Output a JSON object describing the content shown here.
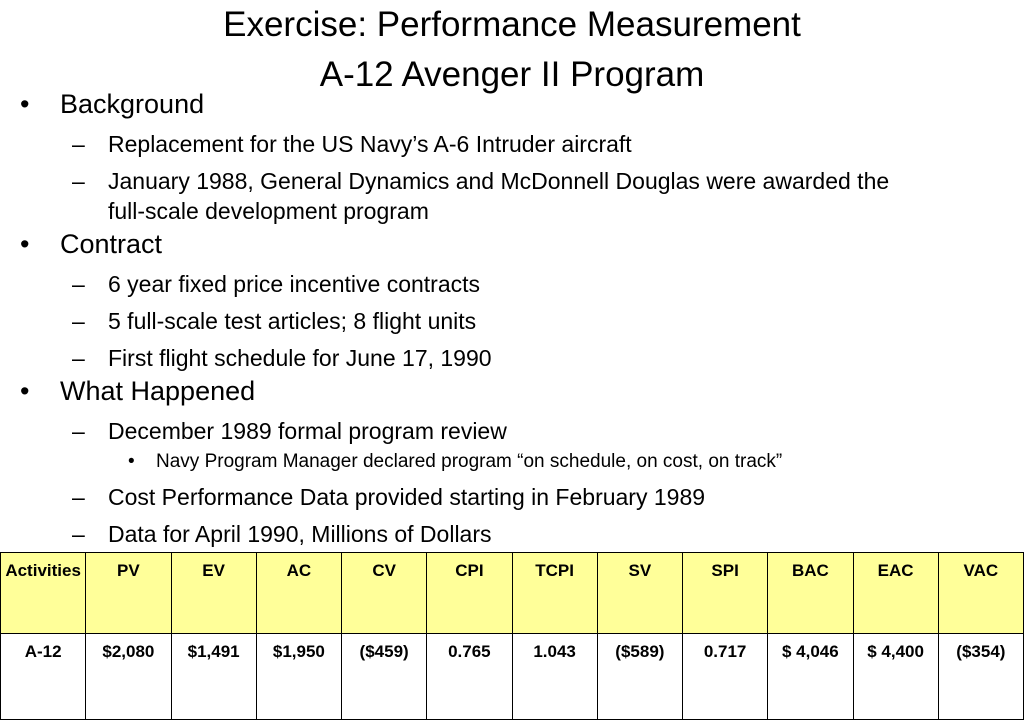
{
  "title": [
    "Exercise: Performance Measurement",
    "A-12 Avenger II Program"
  ],
  "bullets": [
    {
      "text": "Background",
      "items": [
        {
          "text": "Replacement for the US Navy’s A-6 Intruder aircraft"
        },
        {
          "text": "January 1988, General Dynamics and McDonnell Douglas were awarded the full-scale development program"
        }
      ]
    },
    {
      "text": "Contract",
      "items": [
        {
          "text": "6 year fixed price incentive contracts"
        },
        {
          "text": "5 full-scale test articles; 8 flight units"
        },
        {
          "text": "First flight schedule for June 17, 1990"
        }
      ]
    },
    {
      "text": "What Happened",
      "items": [
        {
          "text": "December 1989 formal program review",
          "items": [
            {
              "text": "Navy Program Manager declared program “on schedule, on cost, on track”"
            }
          ]
        },
        {
          "text": "Cost Performance Data provided starting in February 1989"
        },
        {
          "text": "Data for April 1990, Millions of Dollars"
        }
      ]
    }
  ],
  "table": {
    "header": [
      "Activities",
      "PV",
      "EV",
      "AC",
      "CV",
      "CPI",
      "TCPI",
      "SV",
      "SPI",
      "BAC",
      "EAC",
      "VAC"
    ],
    "rows": [
      [
        "A-12",
        "$2,080",
        "$1,491",
        "$1,950",
        "($459)",
        "0.765",
        "1.043",
        "($589)",
        "0.717",
        "$ 4,046",
        "$ 4,400",
        "($354)"
      ]
    ]
  }
}
